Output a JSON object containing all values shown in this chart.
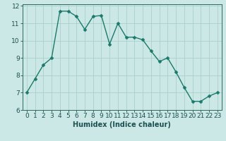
{
  "x": [
    0,
    1,
    2,
    3,
    4,
    5,
    6,
    7,
    8,
    9,
    10,
    11,
    12,
    13,
    14,
    15,
    16,
    17,
    18,
    19,
    20,
    21,
    22,
    23
  ],
  "y": [
    7.0,
    7.8,
    8.6,
    9.0,
    11.7,
    11.7,
    11.4,
    10.65,
    11.4,
    11.45,
    9.8,
    11.0,
    10.2,
    10.2,
    10.05,
    9.4,
    8.8,
    9.0,
    8.2,
    7.3,
    6.5,
    6.5,
    6.8,
    7.0
  ],
  "line_color": "#1a7a6a",
  "marker_color": "#1a7a6a",
  "bg_color": "#cce8e6",
  "grid_color": "#aacfcc",
  "xlabel": "Humidex (Indice chaleur)",
  "ylabel": "",
  "xlim": [
    -0.5,
    23.5
  ],
  "ylim": [
    6,
    12.1
  ],
  "xticks": [
    0,
    1,
    2,
    3,
    4,
    5,
    6,
    7,
    8,
    9,
    10,
    11,
    12,
    13,
    14,
    15,
    16,
    17,
    18,
    19,
    20,
    21,
    22,
    23
  ],
  "yticks": [
    6,
    7,
    8,
    9,
    10,
    11,
    12
  ],
  "xlabel_fontsize": 7,
  "tick_fontsize": 6.5,
  "marker_size": 2.5,
  "line_width": 1.0
}
